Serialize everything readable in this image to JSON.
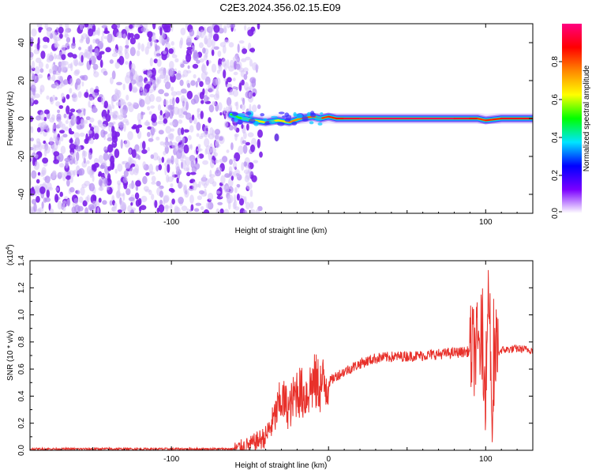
{
  "title": "C2E3.2024.356.02.15.E09",
  "spectrogram": {
    "xlabel": "Height of straight line (km)",
    "ylabel": "Frequency (Hz)",
    "xlim": [
      -190,
      130
    ],
    "ylim": [
      -50,
      50
    ],
    "xticks": [
      -100,
      100
    ],
    "yticks": [
      -40,
      -20,
      0,
      20,
      40
    ],
    "colorbar": {
      "label": "Normalized spectral amplitude",
      "range": [
        0,
        1
      ],
      "ticks": [
        "0.0",
        "0.2",
        "0.4",
        "0.6",
        "0.8"
      ],
      "colors": [
        "#ffffff",
        "#7b00ff",
        "#0000ff",
        "#00e5ff",
        "#00ff00",
        "#ffff00",
        "#ff8800",
        "#ff0000",
        "#ff0080"
      ]
    }
  },
  "chart_data": [
    {
      "type": "heatmap",
      "title": "C2E3.2024.356.02.15.E09",
      "xlabel": "Height of straight line (km)",
      "ylabel": "Frequency (Hz)",
      "xlim": [
        -190,
        130
      ],
      "ylim": [
        -50,
        50
      ],
      "noise_region_x": [
        -190,
        -50
      ],
      "signal_line": {
        "x": [
          -62,
          -55,
          -48,
          -40,
          -32,
          -25,
          -18,
          -10,
          -5,
          0,
          5,
          10,
          20,
          40,
          60,
          80,
          90,
          95,
          100,
          110,
          130
        ],
        "y": [
          2,
          0,
          -1,
          -2,
          -1,
          -2,
          0,
          1,
          0,
          1,
          0,
          0,
          0,
          0,
          0,
          0,
          0,
          0,
          -1,
          0,
          0
        ],
        "amplitude": [
          0.5,
          0.55,
          0.6,
          0.7,
          0.6,
          0.7,
          0.8,
          0.75,
          0.8,
          0.85,
          0.85,
          0.9,
          0.95,
          0.95,
          0.95,
          0.95,
          0.9,
          0.85,
          0.8,
          0.9,
          0.9
        ]
      }
    },
    {
      "type": "line",
      "xlabel": "Height of straight line (km)",
      "ylabel": "SNR (10 * v/v)",
      "y_multiplier": "(x10",
      "y_multiplier_exp": "4",
      "y_multiplier_close": ")",
      "xlim": [
        -190,
        130
      ],
      "ylim": [
        0,
        1.4
      ],
      "xticks": [
        -100,
        0,
        100
      ],
      "yticks": [
        "0.0",
        "0.2",
        "0.4",
        "0.6",
        "0.8",
        "1.0",
        "1.2",
        "1.4"
      ],
      "color": "#e8302a",
      "x": [
        -190,
        -60,
        -50,
        -40,
        -35,
        -30,
        -25,
        -20,
        -15,
        -10,
        -5,
        0,
        5,
        10,
        20,
        30,
        40,
        60,
        80,
        90,
        95,
        98,
        100,
        102,
        104,
        106,
        110,
        120,
        130
      ],
      "y": [
        0.01,
        0.01,
        0.04,
        0.1,
        0.22,
        0.38,
        0.3,
        0.45,
        0.4,
        0.5,
        0.48,
        0.5,
        0.55,
        0.58,
        0.64,
        0.68,
        0.69,
        0.7,
        0.72,
        0.73,
        0.75,
        0.85,
        0.45,
        1.3,
        0.2,
        0.7,
        0.74,
        0.75,
        0.74
      ]
    }
  ]
}
